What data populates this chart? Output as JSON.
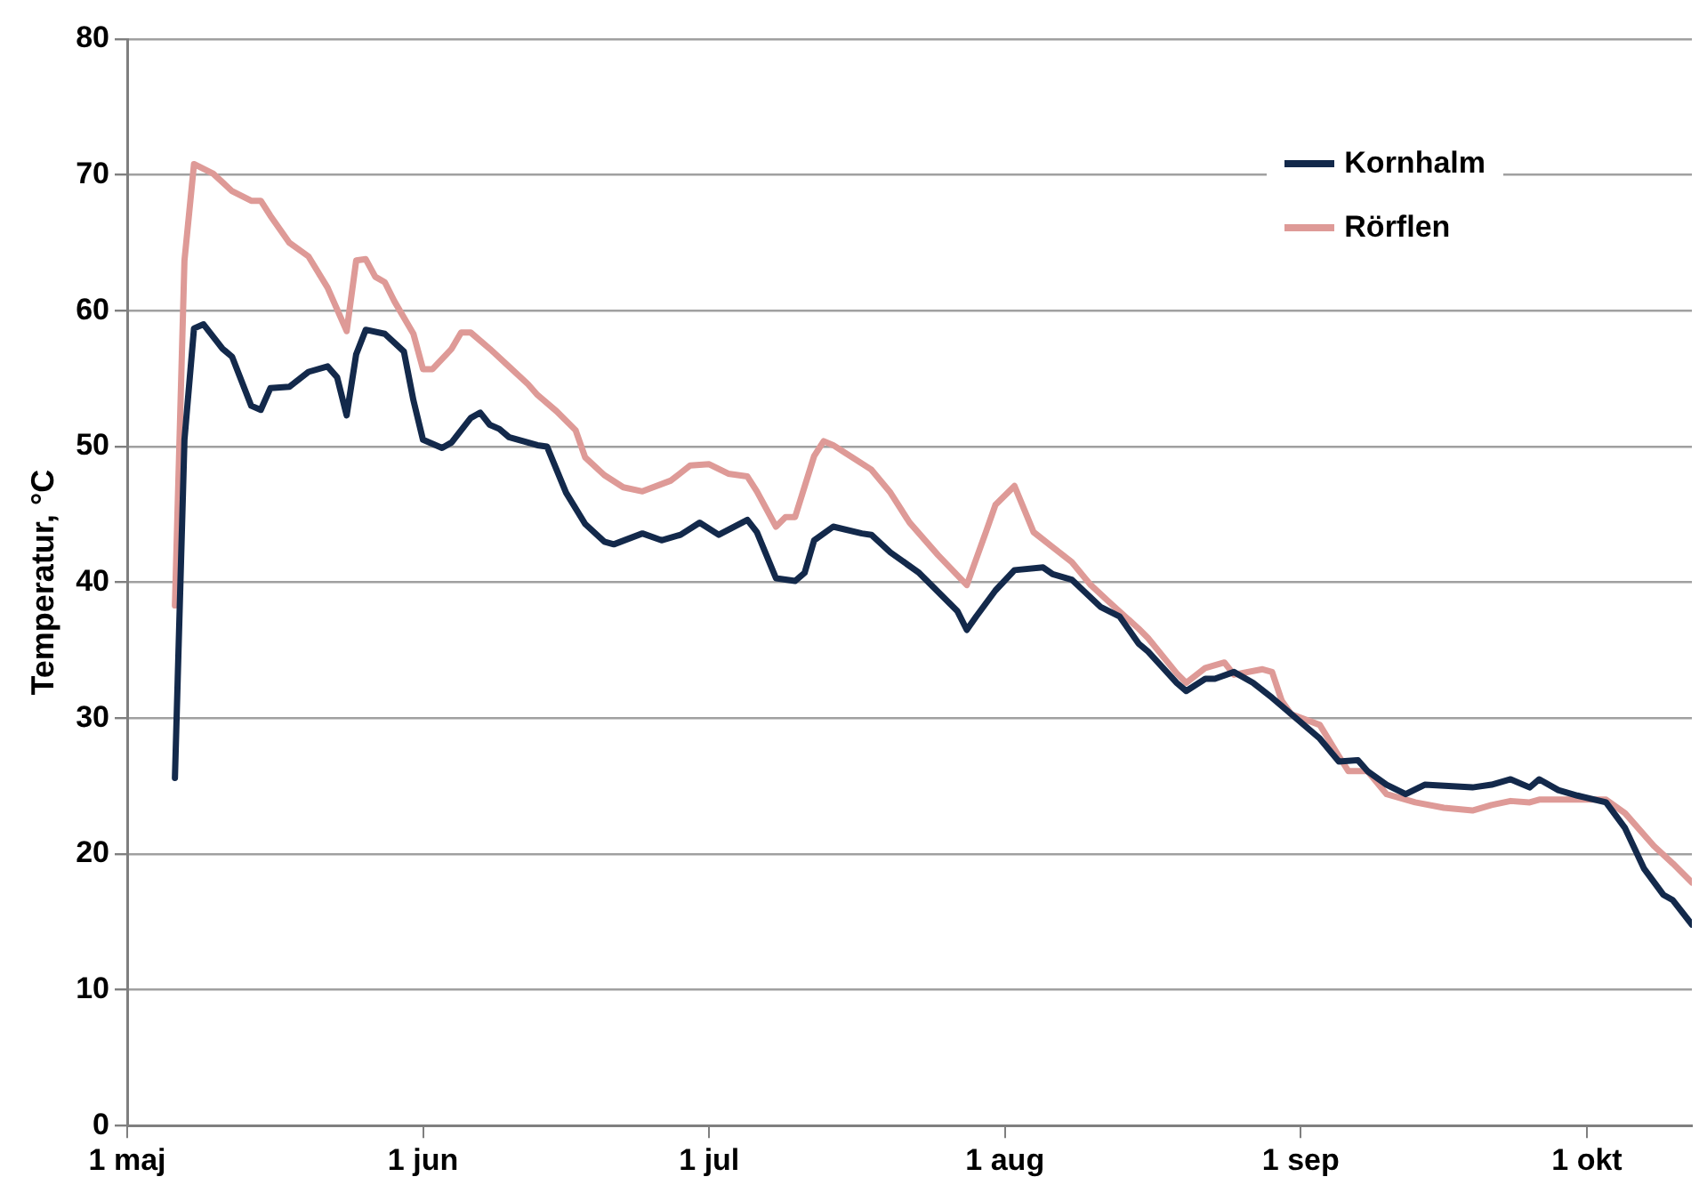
{
  "chart_data": {
    "type": "line",
    "ylabel": "Temperatur, °C",
    "xlim": [
      "--05-01",
      "--10-12"
    ],
    "xticks": [
      {
        "value": "--05-01",
        "label": "1 maj"
      },
      {
        "value": "--06-01",
        "label": "1 jun"
      },
      {
        "value": "--07-01",
        "label": "1 jul"
      },
      {
        "value": "--08-01",
        "label": "1 aug"
      },
      {
        "value": "--09-01",
        "label": "1 sep"
      },
      {
        "value": "--10-01",
        "label": "1 okt"
      }
    ],
    "ylim": [
      0,
      80
    ],
    "yticks": [
      0,
      10,
      20,
      30,
      40,
      50,
      60,
      70,
      80
    ],
    "grid": "y",
    "legend": "top right",
    "marker": "none",
    "line_style": "solid",
    "series": [
      {
        "name": "Kornhalm",
        "color": "#13294b",
        "x": [
          "--05-06",
          "--05-07",
          "--05-08",
          "--05-09",
          "--05-11",
          "--05-12",
          "--05-14",
          "--05-15",
          "--05-16",
          "--05-18",
          "--05-20",
          "--05-22",
          "--05-23",
          "--05-24",
          "--05-25",
          "--05-26",
          "--05-28",
          "--05-30",
          "--05-31",
          "--06-01",
          "--06-03",
          "--06-04",
          "--06-06",
          "--06-07",
          "--06-08",
          "--06-09",
          "--06-10",
          "--06-13",
          "--06-14",
          "--06-16",
          "--06-18",
          "--06-20",
          "--06-21",
          "--06-24",
          "--06-26",
          "--06-28",
          "--06-30",
          "--07-02",
          "--07-05",
          "--07-06",
          "--07-08",
          "--07-10",
          "--07-11",
          "--07-12",
          "--07-14",
          "--07-17",
          "--07-18",
          "--07-20",
          "--07-23",
          "--07-27",
          "--07-28",
          "--07-29",
          "--07-31",
          "--08-02",
          "--08-05",
          "--08-06",
          "--08-08",
          "--08-11",
          "--08-13",
          "--08-15",
          "--08-16",
          "--08-19",
          "--08-20",
          "--08-22",
          "--08-23",
          "--08-25",
          "--08-27",
          "--08-29",
          "--08-31",
          "--09-03",
          "--09-05",
          "--09-07",
          "--09-08",
          "--09-10",
          "--09-12",
          "--09-14",
          "--09-19",
          "--09-21",
          "--09-23",
          "--09-25",
          "--09-26",
          "--09-28",
          "--09-30",
          "--10-03",
          "--10-05",
          "--10-07",
          "--10-09",
          "--10-10",
          "--10-12"
        ],
        "values": [
          25.6,
          50.5,
          58.7,
          59.0,
          57.2,
          56.6,
          53.0,
          52.7,
          54.3,
          54.4,
          55.5,
          55.9,
          55.1,
          52.3,
          56.8,
          58.6,
          58.3,
          57.0,
          53.4,
          50.5,
          49.9,
          50.3,
          52.1,
          52.5,
          51.6,
          51.3,
          50.7,
          50.1,
          50.0,
          46.6,
          44.3,
          43.0,
          42.8,
          43.6,
          43.1,
          43.5,
          44.4,
          43.5,
          44.6,
          43.7,
          40.3,
          40.1,
          40.7,
          43.1,
          44.1,
          43.6,
          43.5,
          42.2,
          40.7,
          37.9,
          36.5,
          37.5,
          39.4,
          40.9,
          41.1,
          40.6,
          40.2,
          38.2,
          37.5,
          35.5,
          34.9,
          32.6,
          32.0,
          32.9,
          32.9,
          33.4,
          32.6,
          31.5,
          30.3,
          28.5,
          26.8,
          26.9,
          26.1,
          25.1,
          24.4,
          25.1,
          24.9,
          25.1,
          25.5,
          24.9,
          25.5,
          24.7,
          24.3,
          23.8,
          21.9,
          18.9,
          17.0,
          16.6,
          14.8
        ]
      },
      {
        "name": "Rörflen",
        "color": "#de9a97",
        "x": [
          "--05-06",
          "--05-07",
          "--05-08",
          "--05-10",
          "--05-12",
          "--05-14",
          "--05-15",
          "--05-16",
          "--05-18",
          "--05-20",
          "--05-22",
          "--05-24",
          "--05-25",
          "--05-26",
          "--05-27",
          "--05-28",
          "--05-29",
          "--05-31",
          "--06-01",
          "--06-02",
          "--06-04",
          "--06-05",
          "--06-06",
          "--06-08",
          "--06-10",
          "--06-12",
          "--06-13",
          "--06-15",
          "--06-17",
          "--06-18",
          "--06-20",
          "--06-22",
          "--06-24",
          "--06-27",
          "--06-29",
          "--07-01",
          "--07-03",
          "--07-05",
          "--07-06",
          "--07-08",
          "--07-09",
          "--07-10",
          "--07-12",
          "--07-13",
          "--07-14",
          "--07-18",
          "--07-20",
          "--07-22",
          "--07-25",
          "--07-28",
          "--07-30",
          "--07-31",
          "--08-02",
          "--08-04",
          "--08-06",
          "--08-08",
          "--08-10",
          "--08-12",
          "--08-15",
          "--08-16",
          "--08-19",
          "--08-20",
          "--08-22",
          "--08-24",
          "--08-25",
          "--08-28",
          "--08-29",
          "--08-30",
          "--08-31",
          "--09-03",
          "--09-05",
          "--09-06",
          "--09-08",
          "--09-10",
          "--09-13",
          "--09-16",
          "--09-19",
          "--09-21",
          "--09-23",
          "--09-25",
          "--09-26",
          "--09-30",
          "--10-03",
          "--10-05",
          "--10-08",
          "--10-10",
          "--10-12"
        ],
        "values": [
          38.3,
          63.7,
          70.8,
          70.1,
          68.8,
          68.1,
          68.1,
          67.0,
          65.0,
          64.0,
          61.7,
          58.5,
          63.7,
          63.8,
          62.5,
          62.1,
          60.7,
          58.3,
          55.7,
          55.7,
          57.2,
          58.4,
          58.4,
          57.2,
          55.9,
          54.6,
          53.8,
          52.6,
          51.2,
          49.2,
          47.9,
          47.0,
          46.7,
          47.5,
          48.6,
          48.7,
          48.0,
          47.8,
          46.7,
          44.1,
          44.8,
          44.8,
          49.3,
          50.4,
          50.1,
          48.3,
          46.6,
          44.4,
          42.0,
          39.8,
          43.7,
          45.7,
          47.1,
          43.7,
          42.6,
          41.5,
          39.8,
          38.5,
          36.6,
          35.9,
          33.3,
          32.6,
          33.7,
          34.1,
          33.2,
          33.6,
          33.4,
          31.3,
          30.3,
          29.5,
          27.2,
          26.1,
          26.1,
          24.4,
          23.8,
          23.4,
          23.2,
          23.6,
          23.9,
          23.8,
          24.0,
          24.0,
          24.0,
          23.0,
          20.6,
          19.3,
          17.9
        ]
      }
    ]
  }
}
